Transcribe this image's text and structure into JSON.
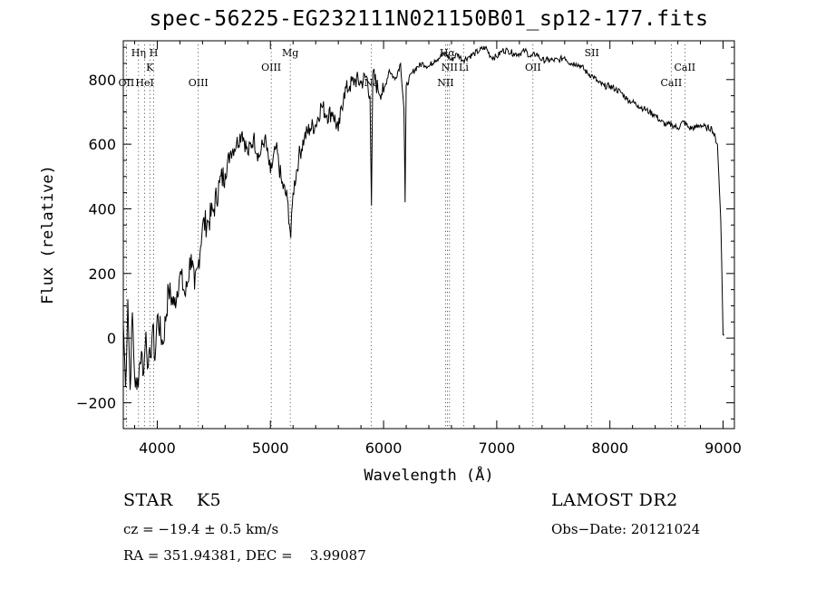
{
  "chart_data": {
    "type": "line",
    "title": "spec-56225-EG232111N021150B01_sp12-177.fits",
    "xlabel": "Wavelength (Å)",
    "ylabel": "Flux (relative)",
    "xlim": [
      3700,
      9100
    ],
    "ylim": [
      -280,
      920
    ],
    "xticks": [
      4000,
      5000,
      6000,
      7000,
      8000,
      9000
    ],
    "yticks": [
      -200,
      0,
      200,
      400,
      600,
      800
    ],
    "grid": false,
    "series": [
      {
        "x": [
          3700,
          3720,
          3740,
          3760,
          3780,
          3800,
          3820,
          3840,
          3860,
          3880,
          3900,
          3920,
          3940,
          3960,
          3980,
          4000,
          4050,
          4100,
          4150,
          4200,
          4250,
          4300,
          4330,
          4360,
          4400,
          4450,
          4500,
          4550,
          4600,
          4650,
          4700,
          4750,
          4800,
          4850,
          4900,
          4950,
          5000,
          5050,
          5100,
          5150,
          5180,
          5200,
          5250,
          5300,
          5350,
          5400,
          5450,
          5500,
          5550,
          5600,
          5650,
          5700,
          5750,
          5800,
          5850,
          5880,
          5893,
          5905,
          5950,
          6000,
          6050,
          6100,
          6150,
          6180,
          6190,
          6200,
          6250,
          6300,
          6350,
          6400,
          6450,
          6500,
          6550,
          6600,
          6650,
          6700,
          6750,
          6800,
          6850,
          6900,
          6950,
          7000,
          7050,
          7100,
          7150,
          7200,
          7250,
          7300,
          7350,
          7400,
          7450,
          7500,
          7550,
          7600,
          7650,
          7700,
          7750,
          7800,
          7850,
          7900,
          7950,
          8000,
          8050,
          8100,
          8150,
          8200,
          8250,
          8300,
          8350,
          8400,
          8450,
          8500,
          8550,
          8600,
          8650,
          8700,
          8750,
          8800,
          8850,
          8900,
          8950,
          8980,
          9000,
          9010
        ],
        "y": [
          50,
          -150,
          120,
          -160,
          80,
          -120,
          -160,
          -90,
          -40,
          -110,
          20,
          -90,
          -60,
          40,
          -70,
          70,
          -20,
          150,
          100,
          200,
          130,
          260,
          150,
          220,
          350,
          360,
          400,
          480,
          510,
          580,
          600,
          640,
          570,
          620,
          560,
          620,
          510,
          590,
          480,
          430,
          310,
          450,
          560,
          620,
          650,
          660,
          720,
          690,
          700,
          640,
          760,
          780,
          800,
          790,
          810,
          750,
          410,
          820,
          770,
          760,
          830,
          800,
          850,
          710,
          420,
          780,
          820,
          840,
          850,
          840,
          860,
          870,
          880,
          860,
          880,
          860,
          870,
          880,
          890,
          900,
          870,
          870,
          890,
          890,
          880,
          880,
          890,
          870,
          880,
          860,
          860,
          860,
          860,
          870,
          850,
          850,
          840,
          820,
          810,
          790,
          780,
          780,
          770,
          760,
          740,
          730,
          720,
          710,
          700,
          690,
          670,
          660,
          660,
          650,
          670,
          650,
          650,
          660,
          650,
          650,
          600,
          360,
          10,
          10
        ]
      }
    ],
    "line_markers": [
      {
        "label": "OII",
        "wave": 3727,
        "row": 3
      },
      {
        "label": "Hη",
        "wave": 3835,
        "row": 1
      },
      {
        "label": "K",
        "wave": 3934,
        "row": 2
      },
      {
        "label": "H",
        "wave": 3969,
        "row": 1
      },
      {
        "label": "HeI",
        "wave": 3889,
        "row": 3
      },
      {
        "label": "OIII",
        "wave": 4363,
        "row": 3
      },
      {
        "label": "OIII",
        "wave": 5007,
        "row": 2
      },
      {
        "label": "Mg",
        "wave": 5175,
        "row": 1
      },
      {
        "label": "Na",
        "wave": 5893,
        "row": 3
      },
      {
        "label": "Hα",
        "wave": 6563,
        "row": 1
      },
      {
        "label": "NII",
        "wave": 6583,
        "row": 2
      },
      {
        "label": "NII",
        "wave": 6548,
        "row": 3
      },
      {
        "label": "Li",
        "wave": 6708,
        "row": 2
      },
      {
        "label": "OII",
        "wave": 7320,
        "row": 2
      },
      {
        "label": "SII",
        "wave": 7840,
        "row": 1
      },
      {
        "label": "CaII",
        "wave": 8662,
        "row": 2
      },
      {
        "label": "CaII",
        "wave": 8542,
        "row": 3
      }
    ]
  },
  "info": {
    "star_type": "STAR    K5",
    "survey": "LAMOST DR2",
    "cz": "cz = −19.4 ± 0.5 km/s",
    "obs_date": "Obs−Date: 20121024",
    "coords": "RA = 351.94381, DEC =    3.99087"
  }
}
